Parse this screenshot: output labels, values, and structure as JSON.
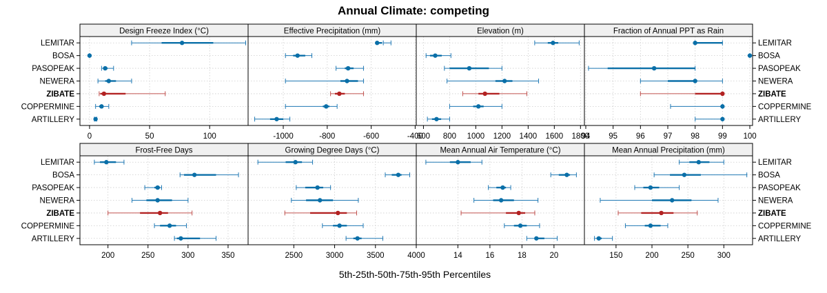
{
  "title": "Annual Climate: competing",
  "xlabel": "5th-25th-50th-75th-95th Percentiles",
  "highlight_site": "ZIBATE",
  "colors": {
    "normal": "#1f78b4",
    "normal_dot": "#0a6fa8",
    "highlight": "#c0504d",
    "highlight_dot": "#b22222",
    "strip": "#f0f0f0",
    "grid": "#cccccc"
  },
  "chart_data": {
    "type": "dot-range",
    "sites": [
      "LEMITAR",
      "BOSA",
      "PASOPEAK",
      "NEWERA",
      "ZIBATE",
      "COPPERMINE",
      "ARTILLERY"
    ],
    "panels": [
      {
        "title": "Design Freeze Index (°C)",
        "xlim": [
          -8,
          132
        ],
        "ticks": [
          0,
          50,
          100
        ],
        "p": [
          [
            35,
            60,
            77,
            103,
            130
          ],
          [
            0,
            0,
            0,
            0,
            0
          ],
          [
            10,
            12,
            13,
            15,
            20
          ],
          [
            7,
            13,
            16,
            22,
            35
          ],
          [
            8,
            9,
            12,
            30,
            63
          ],
          [
            5,
            8,
            10,
            11,
            16
          ],
          [
            4,
            5,
            5,
            6,
            6
          ]
        ]
      },
      {
        "title": "Effective Precipitation (mm)",
        "xlim": [
          -1160,
          -395
        ],
        "ticks": [
          -1000,
          -800,
          -600,
          -400
        ],
        "p": [
          [
            -545,
            -575,
            -573,
            -550,
            -510
          ],
          [
            -990,
            -955,
            -935,
            -900,
            -870
          ],
          [
            -760,
            -720,
            -705,
            -680,
            -635
          ],
          [
            -990,
            -740,
            -710,
            -660,
            -635
          ],
          [
            -785,
            -765,
            -745,
            -720,
            -635
          ],
          [
            -990,
            -820,
            -805,
            -790,
            -755
          ],
          [
            -1130,
            -1060,
            -1030,
            -1000,
            -970
          ]
        ]
      },
      {
        "title": "Elevation (m)",
        "xlim": [
          545,
          1830
        ],
        "ticks": [
          600,
          800,
          1000,
          1200,
          1400,
          1600,
          1800
        ],
        "p": [
          [
            1450,
            1550,
            1590,
            1630,
            1790
          ],
          [
            620,
            650,
            690,
            740,
            810
          ],
          [
            760,
            800,
            950,
            1100,
            1200
          ],
          [
            780,
            1150,
            1220,
            1280,
            1480
          ],
          [
            900,
            1020,
            1070,
            1180,
            1390
          ],
          [
            800,
            980,
            1020,
            1060,
            1200
          ],
          [
            630,
            665,
            700,
            735,
            800
          ]
        ]
      },
      {
        "title": "Fraction of Annual PPT as Rain",
        "xlim": [
          93.95,
          100.1
        ],
        "ticks": [
          94,
          95,
          96,
          97,
          98,
          99,
          100
        ],
        "p": [
          [
            98,
            98,
            98,
            99,
            99
          ],
          [
            100,
            100,
            100,
            100,
            100
          ],
          [
            94.1,
            94.8,
            96.5,
            98,
            98
          ],
          [
            96,
            97,
            98,
            98,
            99
          ],
          [
            96,
            98,
            99,
            99,
            99
          ],
          [
            97.1,
            99,
            99,
            99,
            99
          ],
          [
            98,
            99,
            99,
            99,
            99
          ]
        ]
      },
      {
        "title": "Frost-Free Days",
        "xlim": [
          165,
          375
        ],
        "ticks": [
          200,
          250,
          300,
          350
        ],
        "p": [
          [
            183,
            190,
            198,
            210,
            220
          ],
          [
            290,
            295,
            308,
            335,
            363
          ],
          [
            246,
            258,
            262,
            265,
            267
          ],
          [
            230,
            248,
            262,
            280,
            300
          ],
          [
            200,
            240,
            265,
            275,
            305
          ],
          [
            258,
            265,
            277,
            285,
            298
          ],
          [
            283,
            286,
            291,
            315,
            335
          ]
        ]
      },
      {
        "title": "Growing Degree Days (°C)",
        "xlim": [
          1940,
          4000
        ],
        "ticks": [
          2500,
          3000,
          3500,
          4000
        ],
        "p": [
          [
            2060,
            2400,
            2520,
            2600,
            2730
          ],
          [
            3620,
            3700,
            3780,
            3820,
            3920
          ],
          [
            2530,
            2640,
            2790,
            2860,
            2950
          ],
          [
            2470,
            2650,
            2820,
            2980,
            3290
          ],
          [
            2390,
            2700,
            3040,
            3150,
            3270
          ],
          [
            2850,
            2980,
            3060,
            3150,
            3350
          ],
          [
            3140,
            3230,
            3280,
            3330,
            3590
          ]
        ]
      },
      {
        "title": "Mean Annual Air Temperature (°C)",
        "xlim": [
          11.4,
          21.9
        ],
        "ticks": [
          14,
          16,
          18,
          20
        ],
        "p": [
          [
            12.0,
            13.5,
            14.0,
            14.8,
            15.5
          ],
          [
            19.8,
            20.3,
            20.8,
            21.0,
            21.4
          ],
          [
            15.9,
            16.4,
            16.8,
            17.0,
            17.3
          ],
          [
            15.0,
            16.2,
            16.7,
            17.5,
            19.0
          ],
          [
            14.2,
            17.0,
            17.8,
            18.2,
            18.8
          ],
          [
            16.9,
            17.5,
            17.9,
            18.3,
            19.1
          ],
          [
            18.3,
            18.8,
            18.9,
            19.4,
            20.2
          ]
        ]
      },
      {
        "title": "Mean Annual Precipitation (mm)",
        "xlim": [
          106,
          340
        ],
        "ticks": [
          150,
          200,
          250,
          300
        ],
        "p": [
          [
            238,
            252,
            265,
            280,
            300
          ],
          [
            203,
            225,
            245,
            268,
            332
          ],
          [
            176,
            188,
            198,
            210,
            238
          ],
          [
            128,
            200,
            228,
            255,
            292
          ],
          [
            153,
            185,
            213,
            230,
            263
          ],
          [
            163,
            190,
            198,
            212,
            222
          ],
          [
            120,
            123,
            126,
            130,
            145
          ]
        ]
      }
    ]
  }
}
